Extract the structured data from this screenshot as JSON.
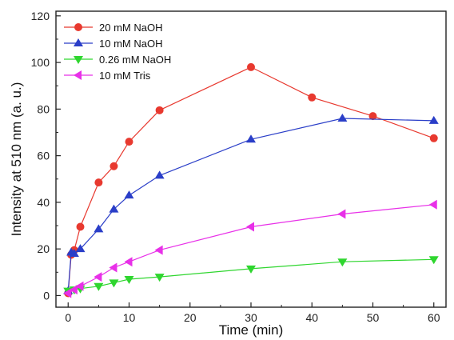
{
  "chart_data": {
    "type": "line",
    "xlabel": "Time (min)",
    "ylabel": "Intensity at 510 nm (a. u.)",
    "xlim": [
      -2,
      62
    ],
    "ylim": [
      -5,
      122
    ],
    "xticks": [
      0,
      10,
      20,
      30,
      40,
      50,
      60
    ],
    "yticks": [
      0,
      20,
      40,
      60,
      80,
      100,
      120
    ],
    "grid": false,
    "legend_position": "top-left",
    "series": [
      {
        "name": "20 mM NaOH",
        "color": "#e8392f",
        "marker": "circle",
        "x": [
          0,
          0.5,
          1,
          2,
          5,
          7.5,
          10,
          15,
          30,
          40,
          50,
          60
        ],
        "y": [
          1,
          17.5,
          19.5,
          29.5,
          48.5,
          55.5,
          66,
          79.5,
          98,
          85,
          77,
          67.5
        ]
      },
      {
        "name": "10 mM NaOH",
        "color": "#2a3ec8",
        "marker": "triangle-up",
        "x": [
          0,
          0.5,
          1,
          2,
          5,
          7.5,
          10,
          15,
          30,
          45,
          60
        ],
        "y": [
          2,
          18.5,
          18,
          20,
          28.5,
          37,
          43,
          51.5,
          67,
          76,
          75
        ]
      },
      {
        "name": "0.26 mM NaOH",
        "color": "#2fd62f",
        "marker": "triangle-down",
        "x": [
          0,
          1,
          2,
          5,
          7.5,
          10,
          15,
          30,
          45,
          60
        ],
        "y": [
          2,
          2.5,
          3,
          4,
          5.5,
          7,
          8,
          11.5,
          14.5,
          15.5
        ]
      },
      {
        "name": "10 mM Tris",
        "color": "#e830e8",
        "marker": "triangle-left",
        "x": [
          0,
          1,
          2,
          5,
          7.5,
          10,
          15,
          30,
          45,
          60
        ],
        "y": [
          1,
          2.5,
          4,
          8,
          12,
          14.5,
          19.5,
          29.5,
          35,
          39
        ]
      }
    ]
  }
}
